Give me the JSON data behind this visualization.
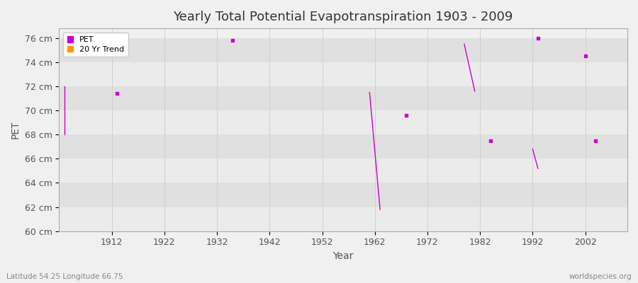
{
  "title": "Yearly Total Potential Evapotranspiration 1903 - 2009",
  "xlabel": "Year",
  "ylabel": "PET",
  "background_color": "#f0f0f0",
  "plot_bg_color": "#f0f0f0",
  "xlim": [
    1902,
    2010
  ],
  "ylim": [
    60,
    76.8
  ],
  "yticks": [
    60,
    62,
    64,
    66,
    68,
    70,
    72,
    74,
    76
  ],
  "ytick_labels": [
    "60 cm",
    "62 cm",
    "64 cm",
    "66 cm",
    "68 cm",
    "70 cm",
    "72 cm",
    "74 cm",
    "76 cm"
  ],
  "xticks": [
    1912,
    1922,
    1932,
    1942,
    1952,
    1962,
    1972,
    1982,
    1992,
    2002
  ],
  "pet_color": "#cc00cc",
  "trend_color": "#ff9900",
  "subtitle_left": "Latitude 54.25 Longitude 66.75",
  "subtitle_right": "worldspecies.org",
  "band_colors": [
    "#ebebeb",
    "#e0e0e0"
  ],
  "pet_segments": [
    {
      "x": [
        1903,
        1903
      ],
      "y": [
        72.0,
        68.0
      ]
    },
    {
      "x": [
        1961,
        1963
      ],
      "y": [
        71.5,
        61.8
      ]
    },
    {
      "x": [
        1979,
        1981
      ],
      "y": [
        75.5,
        71.6
      ]
    },
    {
      "x": [
        1992,
        1993
      ],
      "y": [
        66.8,
        65.2
      ]
    }
  ],
  "pet_points": [
    [
      1913,
      71.4
    ],
    [
      1935,
      75.8
    ],
    [
      1968,
      69.6
    ],
    [
      1984,
      67.5
    ],
    [
      1993,
      76.0
    ],
    [
      2002,
      74.5
    ],
    [
      2004,
      67.5
    ]
  ]
}
